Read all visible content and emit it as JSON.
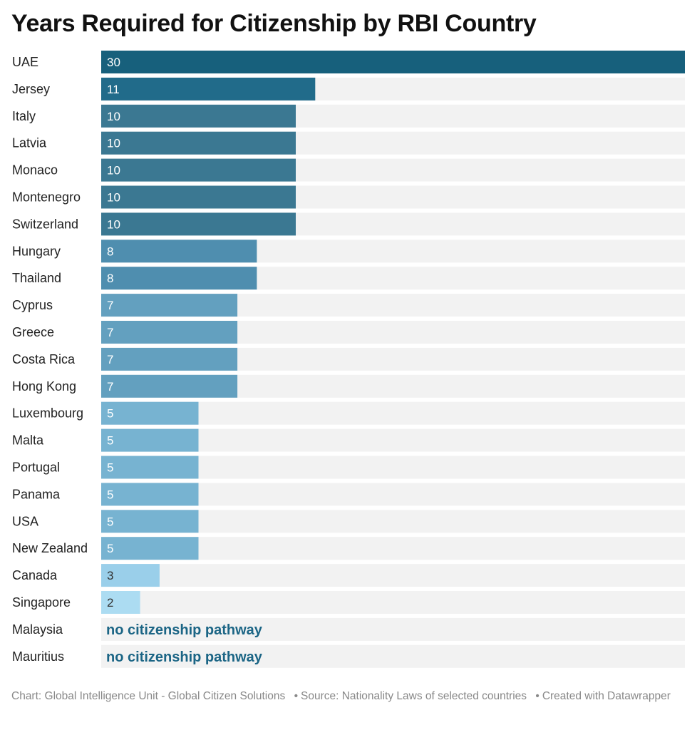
{
  "chart_data": {
    "type": "bar",
    "orientation": "horizontal",
    "title": "Years Required for Citizenship by RBI Country",
    "xlim": [
      0,
      30
    ],
    "categories": [
      "UAE",
      "Jersey",
      "Italy",
      "Latvia",
      "Monaco",
      "Montenegro",
      "Switzerland",
      "Hungary",
      "Thailand",
      "Cyprus",
      "Greece",
      "Costa Rica",
      "Hong Kong",
      "Luxembourg",
      "Malta",
      "Portugal",
      "Panama",
      "USA",
      "New Zealand",
      "Canada",
      "Singapore",
      "Malaysia",
      "Mauritius"
    ],
    "values": [
      30,
      11,
      10,
      10,
      10,
      10,
      10,
      8,
      8,
      7,
      7,
      7,
      7,
      5,
      5,
      5,
      5,
      5,
      5,
      3,
      2,
      null,
      null
    ],
    "missing_label": "no citizenship pathway",
    "colors": {
      "v30": "#17607c",
      "v11": "#216b8a",
      "v10": "#3b7892",
      "v8": "#4f8eaf",
      "v7": "#63a0bf",
      "v5": "#77b3d1",
      "v3": "#9acfea",
      "v2": "#acdcf2",
      "track": "#f2f2f2",
      "light_text": "#ffffff",
      "dark_text": "#333333"
    }
  },
  "footer": {
    "chart_credit": "Chart: Global Intelligence Unit - Global Citizen Solutions",
    "source": "Source: Nationality Laws of selected countries",
    "created_with": "Created with Datawrapper"
  }
}
